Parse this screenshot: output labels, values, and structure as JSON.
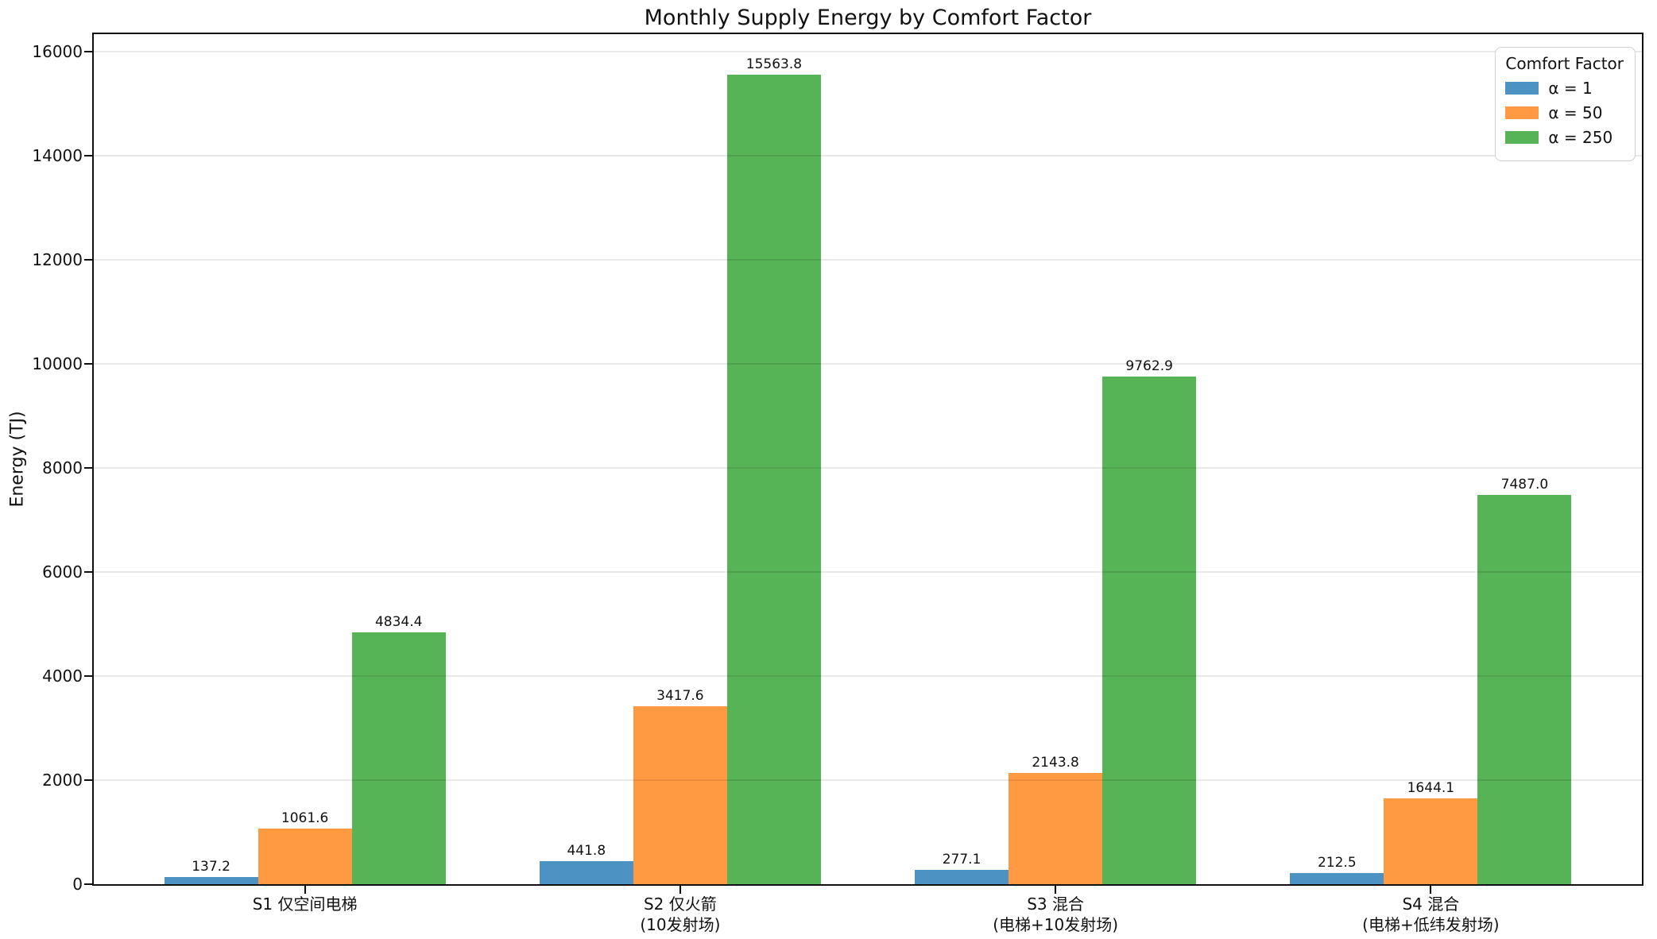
{
  "chart_data": {
    "type": "bar",
    "title": "Monthly Supply Energy by Comfort Factor",
    "ylabel": "Energy (TJ)",
    "categories": [
      [
        "S1 仅空间电梯"
      ],
      [
        "S2 仅火箭",
        "(10发射场)"
      ],
      [
        "S3 混合",
        "(电梯+10发射场)"
      ],
      [
        "S4 混合",
        "(电梯+低纬发射场)"
      ]
    ],
    "series": [
      {
        "name": "α = 1",
        "color": "#4C92C3",
        "values": [
          137.2,
          441.8,
          277.1,
          212.5
        ]
      },
      {
        "name": "α = 50",
        "color": "#FF9942",
        "values": [
          1061.6,
          3417.6,
          2143.8,
          1644.1
        ]
      },
      {
        "name": "α = 250",
        "color": "#56B356",
        "values": [
          4834.4,
          15563.8,
          9762.9,
          7487.0
        ]
      }
    ],
    "ylim": [
      0,
      16342
    ],
    "yticks": [
      0,
      2000,
      4000,
      6000,
      8000,
      10000,
      12000,
      14000,
      16000
    ],
    "grid": "y",
    "bar_labels": true,
    "legend": {
      "title": "Comfort Factor",
      "position": "upper right"
    }
  }
}
